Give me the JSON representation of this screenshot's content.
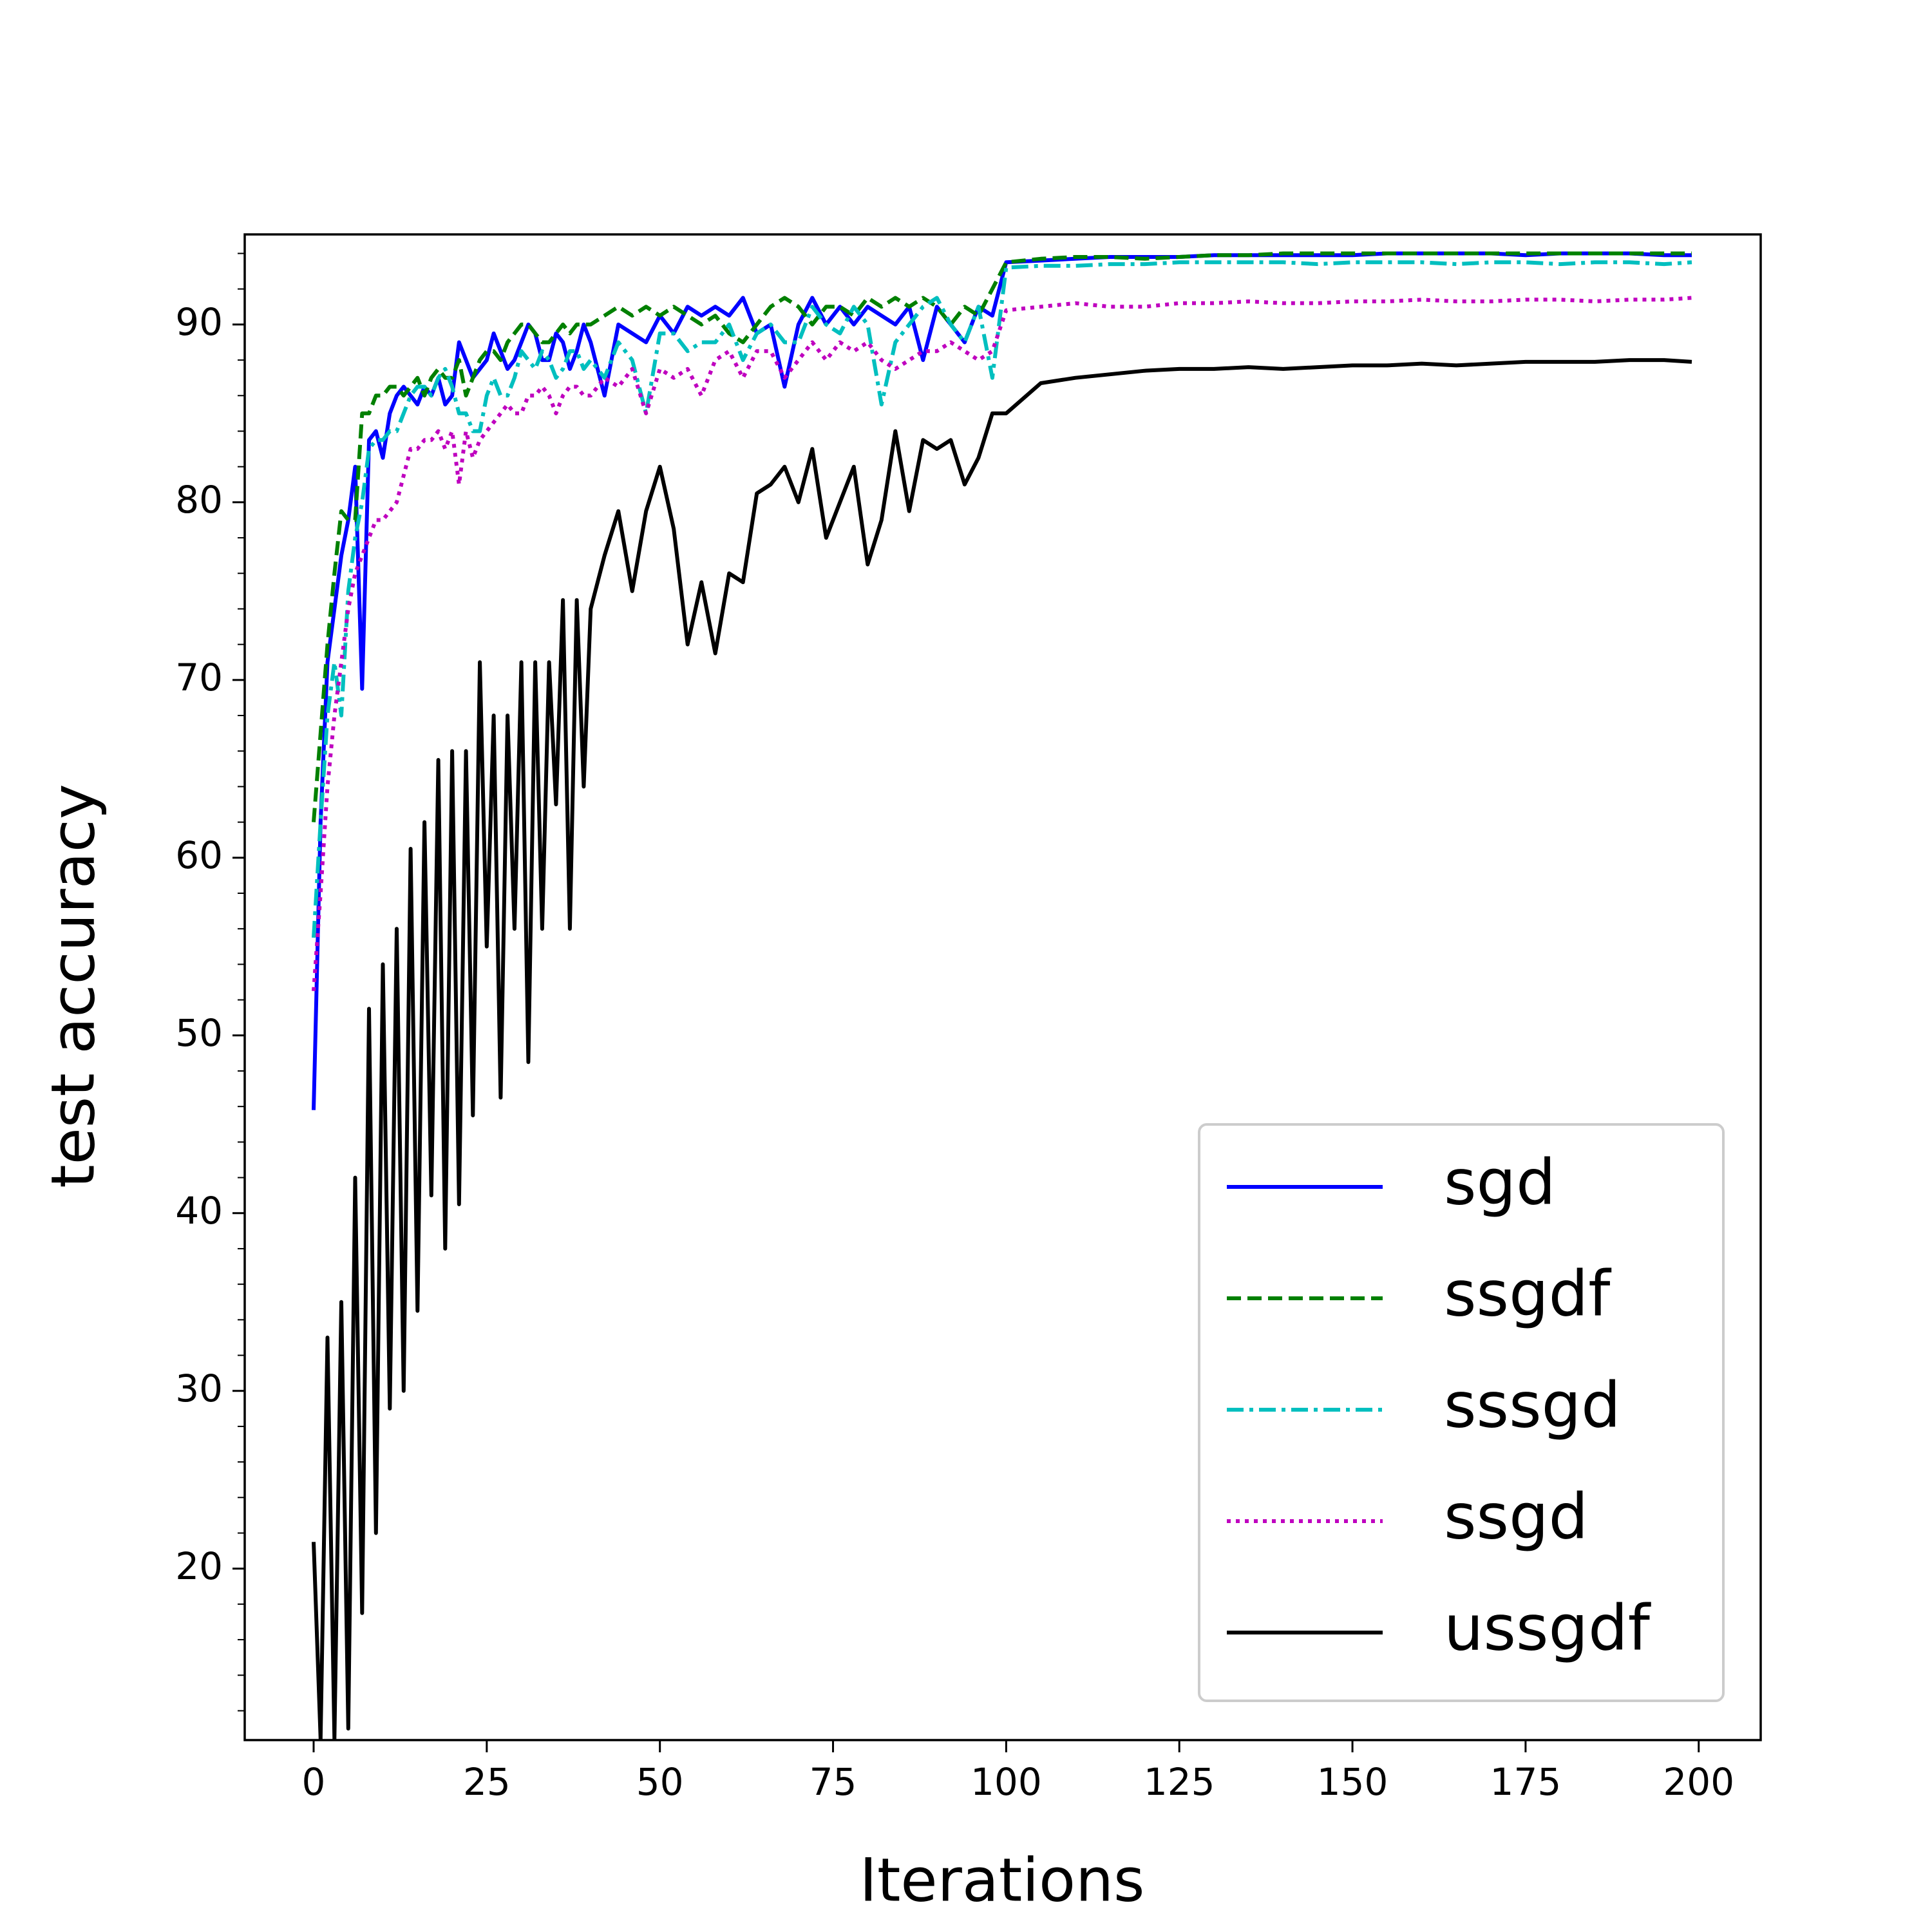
{
  "chart_data": {
    "type": "line",
    "xlabel": "Iterations",
    "ylabel": "test accuracy",
    "x": [
      0,
      1,
      2,
      3,
      4,
      5,
      6,
      7,
      8,
      9,
      10,
      11,
      12,
      13,
      14,
      15,
      16,
      17,
      18,
      19,
      20,
      21,
      22,
      23,
      24,
      25,
      26,
      27,
      28,
      29,
      30,
      31,
      32,
      33,
      34,
      35,
      36,
      37,
      38,
      39,
      40,
      42,
      44,
      46,
      48,
      50,
      52,
      54,
      56,
      58,
      60,
      62,
      64,
      66,
      68,
      70,
      72,
      74,
      76,
      78,
      80,
      82,
      84,
      86,
      88,
      90,
      92,
      94,
      96,
      98,
      100,
      105,
      110,
      115,
      120,
      125,
      130,
      135,
      140,
      145,
      150,
      155,
      160,
      165,
      170,
      175,
      180,
      185,
      190,
      195,
      199
    ],
    "series": [
      {
        "name": "sgd",
        "color": "#0000ff",
        "linestyle": "solid",
        "values": [
          45.8,
          62,
          71,
          74,
          77,
          79,
          82,
          69.5,
          83.5,
          84,
          82.5,
          85,
          86,
          86.5,
          86,
          85.5,
          86.5,
          86,
          87,
          85.5,
          86,
          89,
          88,
          87,
          87.5,
          88,
          89.5,
          88.5,
          87.5,
          88,
          89,
          90,
          89.5,
          88,
          88,
          89.5,
          89,
          87.5,
          88.5,
          90,
          89,
          86,
          90,
          89.5,
          89,
          90.5,
          89.5,
          91,
          90.5,
          91,
          90.5,
          91.5,
          89.5,
          90,
          86.5,
          90,
          91.5,
          90,
          91,
          90,
          91,
          90.5,
          90,
          91,
          88,
          91,
          90,
          89,
          91,
          90.5,
          93.5,
          93.6,
          93.7,
          93.8,
          93.8,
          93.8,
          93.9,
          93.9,
          93.9,
          93.9,
          93.9,
          94,
          94,
          94,
          94,
          93.9,
          94,
          94,
          94,
          93.9,
          93.9
        ]
      },
      {
        "name": "ssgdf",
        "color": "#008000",
        "linestyle": "dashed",
        "values": [
          62,
          67,
          72,
          76,
          79.5,
          79,
          79,
          85,
          85,
          86,
          86,
          86.5,
          86.5,
          86,
          86.5,
          87,
          86,
          87,
          87.5,
          87,
          87,
          88,
          86,
          87,
          88,
          88.5,
          88.5,
          88,
          89,
          89.5,
          90,
          90,
          89.5,
          89,
          89,
          89.5,
          90,
          89.5,
          90,
          90,
          90,
          90.5,
          91,
          90.5,
          91,
          90.5,
          91,
          90.5,
          90,
          90.5,
          89.5,
          89,
          90,
          91,
          91.5,
          91,
          90,
          91,
          91,
          90.5,
          91.5,
          91,
          91.5,
          91,
          91.5,
          91,
          90,
          91,
          90.5,
          92,
          93.5,
          93.7,
          93.8,
          93.8,
          93.7,
          93.8,
          93.9,
          93.9,
          94,
          94,
          94,
          94,
          94,
          94,
          94,
          94,
          94,
          94,
          94,
          94,
          94
        ]
      },
      {
        "name": "sssgd",
        "color": "#00bfbf",
        "linestyle": "dashdot",
        "values": [
          55.5,
          62,
          68,
          71,
          68,
          75,
          78,
          80,
          83,
          83.5,
          83.5,
          84,
          84,
          85,
          86,
          86.5,
          86.5,
          86,
          87,
          87.5,
          86.5,
          85,
          85,
          84,
          84,
          86,
          87,
          86,
          86,
          87,
          88.5,
          88,
          87.5,
          88.5,
          88,
          87,
          87.5,
          88.5,
          88.5,
          87.5,
          88,
          87,
          89,
          88,
          85,
          89.5,
          89.5,
          88.5,
          89,
          89,
          90,
          88,
          89.5,
          90,
          89,
          89,
          91,
          90,
          89.5,
          91,
          90,
          85.5,
          89,
          90,
          91,
          91.5,
          90,
          89,
          91,
          87,
          93.2,
          93.3,
          93.3,
          93.4,
          93.4,
          93.5,
          93.5,
          93.5,
          93.5,
          93.4,
          93.5,
          93.5,
          93.5,
          93.4,
          93.5,
          93.5,
          93.4,
          93.5,
          93.5,
          93.4,
          93.5
        ]
      },
      {
        "name": "ssgd",
        "color": "#bf00bf",
        "linestyle": "dotted",
        "values": [
          52.5,
          58,
          64,
          68,
          71,
          74,
          76,
          77,
          78,
          79,
          79,
          79.5,
          80,
          81.5,
          83,
          83,
          83.5,
          83.5,
          84,
          83,
          84,
          81,
          84,
          82.5,
          83.5,
          84,
          84.5,
          85,
          85.5,
          85,
          85,
          86,
          86,
          86.5,
          86,
          85,
          86,
          86.5,
          86.5,
          86,
          86,
          87,
          86.5,
          87.5,
          85,
          87.5,
          87,
          87.5,
          86,
          88,
          88.5,
          87,
          88.5,
          88.5,
          87,
          88,
          89,
          88,
          89,
          88.5,
          89,
          88,
          87.5,
          88,
          88.5,
          88.5,
          89,
          88.5,
          88,
          88.5,
          90.8,
          91,
          91.2,
          91,
          91,
          91.2,
          91.2,
          91.3,
          91.2,
          91.2,
          91.3,
          91.3,
          91.4,
          91.3,
          91.3,
          91.4,
          91.4,
          91.3,
          91.4,
          91.4,
          91.5
        ]
      },
      {
        "name": "ussgdf",
        "color": "#000000",
        "linestyle": "solid",
        "values": [
          21.5,
          10.4,
          33,
          10.4,
          35,
          11,
          42,
          17.5,
          51.5,
          22,
          54,
          29,
          56,
          30,
          60.5,
          34.5,
          62,
          41,
          65.5,
          38,
          66,
          40.5,
          66,
          45.5,
          71,
          55,
          68,
          46.5,
          68,
          56,
          71,
          48.5,
          71,
          56,
          71,
          63,
          74.5,
          56,
          74.5,
          64,
          74,
          77,
          79.5,
          75,
          79.5,
          82,
          78.5,
          72,
          75.5,
          71.5,
          76,
          75.5,
          80.5,
          81,
          82,
          80,
          83,
          78,
          80,
          82,
          76.5,
          79,
          84,
          79.5,
          83.5,
          83,
          83.5,
          81,
          82.5,
          85,
          85,
          86.7,
          87,
          87.2,
          87.4,
          87.5,
          87.5,
          87.6,
          87.5,
          87.6,
          87.7,
          87.7,
          87.8,
          87.7,
          87.8,
          87.9,
          87.9,
          87.9,
          88,
          88,
          87.9
        ]
      }
    ],
    "xlim": [
      -9.95,
      208.95
    ],
    "ylim": [
      10.35,
      95.07
    ],
    "xticks": [
      0,
      25,
      50,
      75,
      100,
      125,
      150,
      175,
      200
    ],
    "yticks": [
      20,
      30,
      40,
      50,
      60,
      70,
      80,
      90
    ],
    "yminorticks": [
      12,
      14,
      16,
      18,
      22,
      24,
      26,
      28,
      32,
      34,
      36,
      38,
      42,
      44,
      46,
      48,
      52,
      54,
      56,
      58,
      62,
      64,
      66,
      68,
      72,
      74,
      76,
      78,
      82,
      84,
      86,
      88,
      92,
      94
    ],
    "grid": false,
    "legend": "lower right"
  }
}
